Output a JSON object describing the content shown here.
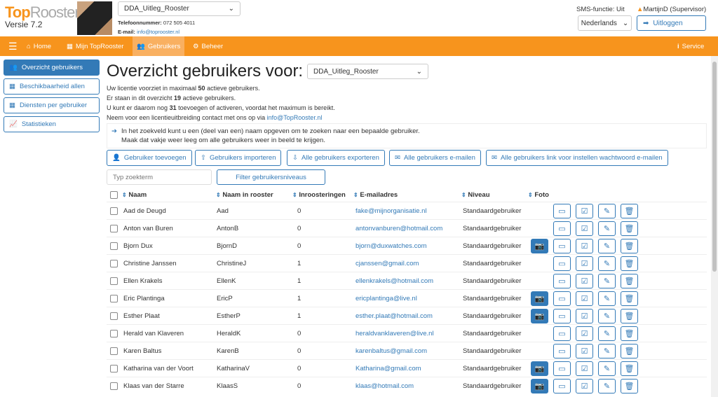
{
  "header": {
    "logo_top": "Top",
    "logo_rest": "Rooster",
    "version": "Versie 7.2",
    "schedule_select": "DDA_Uitleg_Rooster",
    "phone_label": "Telefoonnummer:",
    "phone": "072 505 4011",
    "email_label": "E-mail:",
    "email": "info@toprooster.nl",
    "sms": "SMS-functie: Uit",
    "user": "MartijnD (Supervisor)",
    "language": "Nederlands",
    "logout": "Uitloggen"
  },
  "nav": {
    "items": [
      {
        "label": "Home"
      },
      {
        "label": "Mijn TopRooster"
      },
      {
        "label": "Gebruikers"
      },
      {
        "label": "Beheer"
      }
    ],
    "service": "Service"
  },
  "sidebar": {
    "items": [
      {
        "label": "Overzicht gebruikers"
      },
      {
        "label": "Beschikbaarheid allen"
      },
      {
        "label": "Diensten per gebruiker"
      },
      {
        "label": "Statistieken"
      }
    ]
  },
  "main": {
    "title": "Overzicht gebruikers voor:",
    "schedule_select": "DDA_Uitleg_Rooster",
    "info": [
      {
        "pre": "Uw licentie voorziet in maximaal ",
        "num": "50",
        "post": " actieve gebruikers."
      },
      {
        "pre": "Er staan in dit overzicht ",
        "num": "19",
        "post": " actieve gebruikers."
      },
      {
        "pre": "U kunt er daarom nog ",
        "num": "31",
        "post": " toevoegen of activeren, voordat het maximum is bereikt."
      }
    ],
    "contact_text": "Neem voor een licentieuitbreiding contact met ons op via ",
    "contact_email": "info@TopRooster.nl",
    "tip_line1": "In het zoekveld kunt u een (deel van een) naam opgeven om te zoeken naar een bepaalde gebruiker.",
    "tip_line2": "Maak dat vakje weer leeg om alle gebruikers weer in beeld te krijgen.",
    "buttons": [
      "Gebruiker toevoegen",
      "Gebruikers importeren",
      "Alle gebruikers exporteren",
      "Alle gebruikers e-mailen",
      "Alle gebruikers link voor instellen wachtwoord e-mailen"
    ],
    "search_placeholder": "Typ zoekterm",
    "filter": "Filter gebruikersniveaus",
    "columns": [
      "Naam",
      "Naam in rooster",
      "Inroosteringen",
      "E-mailadres",
      "Niveau",
      "Foto"
    ],
    "rows": [
      {
        "name": "Aad de Deugd",
        "roster": "Aad",
        "count": "0",
        "email": "fake@mijnorganisatie.nl",
        "level": "Standaardgebruiker",
        "photo": false
      },
      {
        "name": "Anton van Buren",
        "roster": "AntonB",
        "count": "0",
        "email": "antonvanburen@hotmail.com",
        "level": "Standaardgebruiker",
        "photo": false
      },
      {
        "name": "Bjorn Dux",
        "roster": "BjornD",
        "count": "0",
        "email": "bjorn@duxwatches.com",
        "level": "Standaardgebruiker",
        "photo": true
      },
      {
        "name": "Christine Janssen",
        "roster": "ChristineJ",
        "count": "1",
        "email": "cjanssen@gmail.com",
        "level": "Standaardgebruiker",
        "photo": false
      },
      {
        "name": "Ellen Krakels",
        "roster": "EllenK",
        "count": "1",
        "email": "ellenkrakels@hotmail.com",
        "level": "Standaardgebruiker",
        "photo": false
      },
      {
        "name": "Eric Plantinga",
        "roster": "EricP",
        "count": "1",
        "email": "ericplantinga@live.nl",
        "level": "Standaardgebruiker",
        "photo": true
      },
      {
        "name": "Esther Plaat",
        "roster": "EstherP",
        "count": "1",
        "email": "esther.plaat@hotmail.com",
        "level": "Standaardgebruiker",
        "photo": true
      },
      {
        "name": "Herald van Klaveren",
        "roster": "HeraldK",
        "count": "0",
        "email": "heraldvanklaveren@live.nl",
        "level": "Standaardgebruiker",
        "photo": false
      },
      {
        "name": "Karen Baltus",
        "roster": "KarenB",
        "count": "0",
        "email": "karenbaltus@gmail.com",
        "level": "Standaardgebruiker",
        "photo": false
      },
      {
        "name": "Katharina van der Voort",
        "roster": "KatharinaV",
        "count": "0",
        "email": "Katharina@gmail.com",
        "level": "Standaardgebruiker",
        "photo": true
      },
      {
        "name": "Klaas van der Starre",
        "roster": "KlaasS",
        "count": "0",
        "email": "klaas@hotmail.com",
        "level": "Standaardgebruiker",
        "photo": true
      }
    ]
  },
  "colors": {
    "accent": "#f7941d",
    "primary": "#337ab7"
  }
}
